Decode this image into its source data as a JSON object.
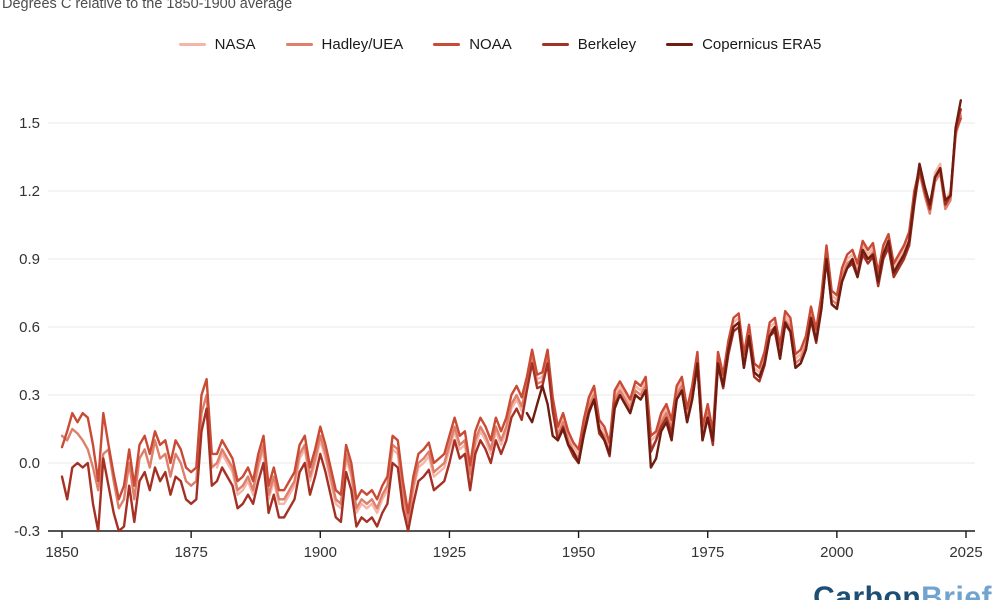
{
  "header": {
    "units_label": "Degrees C relative to the 1850-1900 average"
  },
  "footer": {
    "brand_first": "Carbon",
    "brand_second": "Brief"
  },
  "chart_data": {
    "type": "line",
    "title": "Degrees C relative to the 1850-1900 average",
    "xlabel": "",
    "ylabel": "Degrees C",
    "baseline": "1850-1900 average",
    "xlim": [
      1850,
      2025
    ],
    "ylim": [
      -0.3,
      1.65
    ],
    "x_ticks": [
      1850,
      1875,
      1900,
      1925,
      1950,
      1975,
      2000,
      2025
    ],
    "y_ticks": [
      1.5,
      1.2,
      0.9,
      0.6,
      0.3,
      0.0,
      -0.3
    ],
    "grid": true,
    "legend_position": "top",
    "grid_color": "#e9e9e9",
    "axis_color": "#1a1a1a",
    "series": [
      {
        "name": "NASA",
        "color": "#f5b5a8",
        "start_year": 1880,
        "values": [
          -0.02,
          0.04,
          0.0,
          -0.04,
          -0.14,
          -0.12,
          -0.08,
          -0.14,
          -0.02,
          0.06,
          -0.16,
          -0.08,
          -0.18,
          -0.18,
          -0.14,
          -0.1,
          0.02,
          0.06,
          -0.08,
          0.0,
          0.1,
          0.02,
          -0.08,
          -0.18,
          -0.2,
          0.02,
          -0.06,
          -0.22,
          -0.18,
          -0.2,
          -0.18,
          -0.22,
          -0.16,
          -0.12,
          0.06,
          0.04,
          -0.14,
          -0.28,
          -0.12,
          -0.02,
          0.0,
          0.03,
          -0.06,
          -0.04,
          -0.02,
          0.06,
          0.14,
          0.06,
          0.08,
          -0.07,
          0.08,
          0.14,
          0.1,
          0.04,
          0.14,
          0.08,
          0.14,
          0.24,
          0.28,
          0.23,
          0.36,
          0.48,
          0.37,
          0.38,
          0.48,
          0.27,
          0.14,
          0.2,
          0.12,
          0.07,
          0.04,
          0.17,
          0.27,
          0.32,
          0.17,
          0.14,
          0.07,
          0.3,
          0.34,
          0.3,
          0.26,
          0.34,
          0.32,
          0.36,
          0.1,
          0.12,
          0.2,
          0.24,
          0.17,
          0.32,
          0.36,
          0.22,
          0.32,
          0.47,
          0.14,
          0.24,
          0.12,
          0.47,
          0.37,
          0.52,
          0.62,
          0.64,
          0.46,
          0.59,
          0.42,
          0.4,
          0.47,
          0.6,
          0.62,
          0.5,
          0.65,
          0.62,
          0.46,
          0.48,
          0.54,
          0.67,
          0.57,
          0.72,
          0.94,
          0.74,
          0.72,
          0.84,
          0.9,
          0.92,
          0.86,
          0.96,
          0.92,
          0.95,
          0.82,
          0.94,
          0.99,
          0.86,
          0.9,
          0.94,
          1.0,
          1.18,
          1.32,
          1.22,
          1.12,
          1.28,
          1.32,
          1.16,
          1.2,
          1.44,
          1.54
        ]
      },
      {
        "name": "Hadley/UEA",
        "color": "#de7f6b",
        "start_year": 1850,
        "values": [
          0.12,
          0.1,
          0.15,
          0.13,
          0.1,
          0.06,
          -0.02,
          -0.12,
          0.04,
          0.06,
          -0.08,
          -0.2,
          -0.16,
          0.0,
          -0.16,
          0.02,
          0.06,
          -0.02,
          0.1,
          0.02,
          0.04,
          -0.06,
          0.04,
          0.0,
          -0.08,
          -0.1,
          -0.08,
          0.22,
          0.3,
          -0.02,
          0.0,
          0.06,
          0.02,
          -0.02,
          -0.12,
          -0.1,
          -0.06,
          -0.12,
          0.0,
          0.08,
          -0.14,
          -0.06,
          -0.16,
          -0.16,
          -0.12,
          -0.08,
          0.04,
          0.08,
          -0.06,
          0.02,
          0.12,
          0.04,
          -0.06,
          -0.16,
          -0.18,
          0.04,
          -0.04,
          -0.2,
          -0.16,
          -0.18,
          -0.16,
          -0.2,
          -0.14,
          -0.1,
          0.08,
          0.06,
          -0.12,
          -0.26,
          -0.1,
          0.0,
          0.02,
          0.05,
          -0.04,
          -0.02,
          0.0,
          0.08,
          0.16,
          0.08,
          0.1,
          -0.05,
          0.1,
          0.16,
          0.12,
          0.06,
          0.16,
          0.1,
          0.16,
          0.26,
          0.3,
          0.25,
          0.34,
          0.46,
          0.35,
          0.36,
          0.46,
          0.25,
          0.12,
          0.18,
          0.1,
          0.05,
          0.02,
          0.15,
          0.25,
          0.3,
          0.15,
          0.12,
          0.05,
          0.28,
          0.32,
          0.28,
          0.24,
          0.32,
          0.3,
          0.34,
          0.06,
          0.1,
          0.18,
          0.22,
          0.15,
          0.3,
          0.34,
          0.2,
          0.3,
          0.45,
          0.12,
          0.22,
          0.1,
          0.45,
          0.35,
          0.5,
          0.6,
          0.62,
          0.44,
          0.57,
          0.4,
          0.38,
          0.45,
          0.58,
          0.6,
          0.48,
          0.63,
          0.6,
          0.44,
          0.46,
          0.52,
          0.65,
          0.55,
          0.7,
          0.92,
          0.72,
          0.7,
          0.82,
          0.88,
          0.9,
          0.84,
          0.94,
          0.9,
          0.93,
          0.8,
          0.92,
          0.97,
          0.84,
          0.88,
          0.92,
          0.98,
          1.16,
          1.28,
          1.18,
          1.1,
          1.24,
          1.28,
          1.12,
          1.16,
          1.46,
          1.53
        ]
      },
      {
        "name": "NOAA",
        "color": "#c94a35",
        "start_year": 1850,
        "values": [
          0.07,
          0.14,
          0.22,
          0.18,
          0.22,
          0.2,
          0.08,
          -0.08,
          0.22,
          0.08,
          -0.05,
          -0.16,
          -0.1,
          0.06,
          -0.1,
          0.08,
          0.12,
          0.04,
          0.14,
          0.08,
          0.1,
          0.0,
          0.1,
          0.06,
          -0.02,
          -0.04,
          -0.02,
          0.3,
          0.37,
          0.04,
          0.04,
          0.1,
          0.06,
          0.02,
          -0.08,
          -0.06,
          -0.02,
          -0.08,
          0.04,
          0.12,
          -0.1,
          -0.02,
          -0.12,
          -0.12,
          -0.08,
          -0.04,
          0.08,
          0.12,
          -0.02,
          0.06,
          0.16,
          0.08,
          -0.02,
          -0.12,
          -0.14,
          0.08,
          0.0,
          -0.16,
          -0.12,
          -0.14,
          -0.12,
          -0.16,
          -0.1,
          -0.06,
          0.12,
          0.1,
          -0.08,
          -0.22,
          -0.06,
          0.04,
          0.06,
          0.09,
          0.0,
          0.02,
          0.04,
          0.12,
          0.2,
          0.12,
          0.14,
          -0.01,
          0.14,
          0.2,
          0.16,
          0.1,
          0.2,
          0.14,
          0.2,
          0.3,
          0.34,
          0.29,
          0.38,
          0.5,
          0.39,
          0.4,
          0.5,
          0.29,
          0.16,
          0.22,
          0.14,
          0.09,
          0.06,
          0.19,
          0.29,
          0.34,
          0.19,
          0.16,
          0.09,
          0.32,
          0.36,
          0.32,
          0.28,
          0.36,
          0.34,
          0.38,
          0.12,
          0.14,
          0.22,
          0.26,
          0.19,
          0.34,
          0.38,
          0.24,
          0.34,
          0.49,
          0.16,
          0.26,
          0.14,
          0.49,
          0.39,
          0.54,
          0.64,
          0.66,
          0.48,
          0.61,
          0.44,
          0.42,
          0.49,
          0.62,
          0.64,
          0.52,
          0.67,
          0.64,
          0.48,
          0.5,
          0.56,
          0.69,
          0.59,
          0.74,
          0.96,
          0.76,
          0.74,
          0.86,
          0.92,
          0.94,
          0.88,
          0.98,
          0.94,
          0.97,
          0.84,
          0.96,
          1.01,
          0.88,
          0.92,
          0.96,
          1.02,
          1.2,
          1.3,
          1.2,
          1.12,
          1.26,
          1.3,
          1.14,
          1.18,
          1.46,
          1.52
        ]
      },
      {
        "name": "Berkeley",
        "color": "#a53125",
        "start_year": 1850,
        "values": [
          -0.06,
          -0.16,
          -0.02,
          0.0,
          -0.02,
          0.0,
          -0.18,
          -0.3,
          0.02,
          -0.1,
          -0.22,
          -0.3,
          -0.28,
          -0.1,
          -0.26,
          -0.08,
          -0.04,
          -0.12,
          -0.02,
          -0.08,
          -0.04,
          -0.14,
          -0.06,
          -0.08,
          -0.16,
          -0.18,
          -0.16,
          0.14,
          0.24,
          -0.1,
          -0.08,
          -0.02,
          -0.06,
          -0.1,
          -0.2,
          -0.18,
          -0.14,
          -0.18,
          -0.08,
          0.0,
          -0.22,
          -0.14,
          -0.24,
          -0.24,
          -0.2,
          -0.16,
          -0.04,
          0.0,
          -0.14,
          -0.06,
          0.04,
          -0.04,
          -0.14,
          -0.24,
          -0.26,
          -0.04,
          -0.12,
          -0.28,
          -0.24,
          -0.26,
          -0.24,
          -0.28,
          -0.22,
          -0.18,
          0.0,
          -0.02,
          -0.2,
          -0.3,
          -0.18,
          -0.08,
          -0.06,
          -0.03,
          -0.12,
          -0.1,
          -0.08,
          0.0,
          0.1,
          0.02,
          0.04,
          -0.12,
          0.04,
          0.1,
          0.06,
          0.0,
          0.1,
          0.04,
          0.1,
          0.2,
          0.24,
          0.19,
          0.32,
          0.44,
          0.33,
          0.34,
          0.44,
          0.23,
          0.1,
          0.16,
          0.08,
          0.03,
          0.0,
          0.13,
          0.23,
          0.28,
          0.13,
          0.1,
          0.03,
          0.26,
          0.3,
          0.26,
          0.22,
          0.3,
          0.28,
          0.32,
          0.05,
          0.1,
          0.16,
          0.2,
          0.13,
          0.28,
          0.32,
          0.18,
          0.28,
          0.43,
          0.1,
          0.2,
          0.08,
          0.43,
          0.33,
          0.48,
          0.58,
          0.6,
          0.42,
          0.55,
          0.38,
          0.36,
          0.43,
          0.56,
          0.58,
          0.46,
          0.61,
          0.58,
          0.42,
          0.44,
          0.5,
          0.63,
          0.53,
          0.68,
          0.9,
          0.7,
          0.68,
          0.8,
          0.86,
          0.88,
          0.82,
          0.92,
          0.88,
          0.91,
          0.78,
          0.9,
          0.95,
          0.82,
          0.86,
          0.9,
          0.96,
          1.14,
          1.3,
          1.2,
          1.12,
          1.26,
          1.3,
          1.14,
          1.18,
          1.48,
          1.56
        ]
      },
      {
        "name": "Copernicus ERA5",
        "color": "#6e1d10",
        "start_year": 1940,
        "values": [
          0.22,
          0.18,
          0.26,
          0.34,
          0.26,
          0.12,
          0.1,
          0.15,
          0.08,
          0.05,
          0.0,
          0.12,
          0.22,
          0.28,
          0.15,
          0.1,
          0.04,
          0.24,
          0.3,
          0.26,
          0.22,
          0.3,
          0.28,
          0.32,
          -0.02,
          0.02,
          0.14,
          0.18,
          0.1,
          0.28,
          0.32,
          0.18,
          0.28,
          0.44,
          0.1,
          0.2,
          0.1,
          0.44,
          0.34,
          0.5,
          0.6,
          0.62,
          0.42,
          0.56,
          0.4,
          0.38,
          0.44,
          0.56,
          0.6,
          0.46,
          0.62,
          0.58,
          0.42,
          0.44,
          0.5,
          0.64,
          0.54,
          0.68,
          0.9,
          0.7,
          0.68,
          0.8,
          0.86,
          0.9,
          0.82,
          0.94,
          0.9,
          0.92,
          0.8,
          0.92,
          0.98,
          0.84,
          0.88,
          0.92,
          0.98,
          1.16,
          1.32,
          1.22,
          1.14,
          1.26,
          1.3,
          1.16,
          1.18,
          1.48,
          1.6
        ]
      }
    ]
  }
}
